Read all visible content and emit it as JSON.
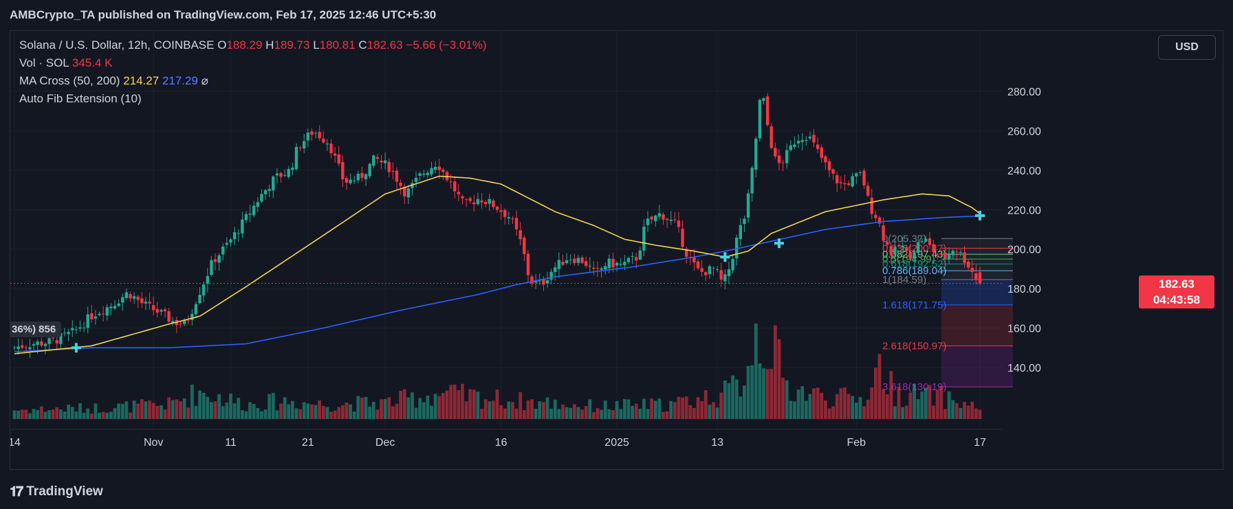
{
  "header": {
    "publisher": "AMBCrypto_TA published on TradingView.com, Feb 17, 2025 12:46 UTC+5:30"
  },
  "legend": {
    "symbol": "Solana / U.S. Dollar, 12h, COINBASE",
    "open_label": "O",
    "open": "188.29",
    "high_label": "H",
    "high": "189.73",
    "low_label": "L",
    "low": "180.81",
    "close_label": "C",
    "close": "182.63",
    "change": "−5.66 (−3.01%)",
    "vol_label": "Vol · SOL",
    "vol_value": "345.4 K",
    "ma_label": "MA Cross (50, 200)",
    "ma_fast": "214.27",
    "ma_slow": "217.29",
    "ma_symbol": "⌀",
    "fib_label": "Auto Fib Extension (10)"
  },
  "currency": "USD",
  "price_tag": {
    "price": "182.63",
    "countdown": "04:43:58"
  },
  "left_tag": "36%) 856",
  "footer": {
    "brand": "TradingView"
  },
  "colors": {
    "up": "#22ab94",
    "down": "#f23645",
    "ma50": "#f7d74a",
    "ma200": "#2962ff",
    "cross": "#4dd0e1",
    "fib_blue": "#5b9cf6",
    "fib_red": "#f23645",
    "fib_purple": "#9c27b0"
  },
  "chart_data": {
    "type": "candlestick",
    "title": "Solana / U.S. Dollar, 12h, COINBASE",
    "y_ticks": [
      140,
      160,
      180,
      200,
      220,
      240,
      260,
      280
    ],
    "ylim": [
      130,
      300
    ],
    "x_ticks": [
      {
        "label": "14",
        "index": 0
      },
      {
        "label": "Nov",
        "index": 36
      },
      {
        "label": "11",
        "index": 56
      },
      {
        "label": "21",
        "index": 76
      },
      {
        "label": "Dec",
        "index": 96
      },
      {
        "label": "16",
        "index": 126
      },
      {
        "label": "2025",
        "index": 156
      },
      {
        "label": "13",
        "index": 182
      },
      {
        "label": "Feb",
        "index": 218
      },
      {
        "label": "17",
        "index": 250
      }
    ],
    "price_anchors": [
      [
        0,
        150
      ],
      [
        5,
        152
      ],
      [
        10,
        153
      ],
      [
        16,
        158
      ],
      [
        21,
        167
      ],
      [
        26,
        172
      ],
      [
        30,
        178
      ],
      [
        34,
        172
      ],
      [
        38,
        168
      ],
      [
        42,
        163
      ],
      [
        45,
        162
      ],
      [
        48,
        176
      ],
      [
        52,
        194
      ],
      [
        56,
        203
      ],
      [
        60,
        214
      ],
      [
        64,
        226
      ],
      [
        68,
        236
      ],
      [
        72,
        240
      ],
      [
        74,
        252
      ],
      [
        78,
        260
      ],
      [
        82,
        254
      ],
      [
        86,
        234
      ],
      [
        90,
        236
      ],
      [
        94,
        246
      ],
      [
        98,
        241
      ],
      [
        102,
        228
      ],
      [
        106,
        238
      ],
      [
        110,
        244
      ],
      [
        114,
        232
      ],
      [
        117,
        222
      ],
      [
        121,
        226
      ],
      [
        125,
        222
      ],
      [
        129,
        216
      ],
      [
        132,
        202
      ],
      [
        134,
        184
      ],
      [
        137,
        182
      ],
      [
        140,
        190
      ],
      [
        144,
        196
      ],
      [
        148,
        194
      ],
      [
        151,
        187
      ],
      [
        154,
        193
      ],
      [
        158,
        192
      ],
      [
        162,
        196
      ],
      [
        164,
        213
      ],
      [
        168,
        218
      ],
      [
        172,
        212
      ],
      [
        175,
        196
      ],
      [
        178,
        188
      ],
      [
        182,
        190
      ],
      [
        184,
        182
      ],
      [
        186,
        192
      ],
      [
        188,
        208
      ],
      [
        190,
        218
      ],
      [
        192,
        245
      ],
      [
        194,
        282
      ],
      [
        196,
        258
      ],
      [
        198,
        242
      ],
      [
        200,
        246
      ],
      [
        203,
        256
      ],
      [
        206,
        258
      ],
      [
        209,
        248
      ],
      [
        212,
        238
      ],
      [
        215,
        232
      ],
      [
        218,
        236
      ],
      [
        220,
        238
      ],
      [
        222,
        222
      ],
      [
        224,
        216
      ],
      [
        226,
        204
      ],
      [
        228,
        197
      ],
      [
        230,
        203
      ],
      [
        232,
        196
      ],
      [
        234,
        201
      ],
      [
        236,
        206
      ],
      [
        238,
        200
      ],
      [
        241,
        195
      ],
      [
        244,
        201
      ],
      [
        247,
        194
      ],
      [
        250,
        184
      ]
    ],
    "volume_anchors": [
      [
        0,
        10
      ],
      [
        20,
        12
      ],
      [
        40,
        16
      ],
      [
        48,
        30
      ],
      [
        60,
        16
      ],
      [
        70,
        20
      ],
      [
        80,
        16
      ],
      [
        96,
        18
      ],
      [
        110,
        28
      ],
      [
        130,
        20
      ],
      [
        150,
        14
      ],
      [
        170,
        16
      ],
      [
        184,
        28
      ],
      [
        188,
        40
      ],
      [
        192,
        95
      ],
      [
        196,
        82
      ],
      [
        200,
        35
      ],
      [
        210,
        24
      ],
      [
        220,
        22
      ],
      [
        224,
        58
      ],
      [
        228,
        28
      ],
      [
        240,
        24
      ],
      [
        250,
        12
      ]
    ],
    "ma50_anchors": [
      [
        0,
        147
      ],
      [
        20,
        151
      ],
      [
        40,
        162
      ],
      [
        48,
        166
      ],
      [
        60,
        181
      ],
      [
        80,
        207
      ],
      [
        96,
        228
      ],
      [
        110,
        237
      ],
      [
        118,
        236
      ],
      [
        126,
        233
      ],
      [
        140,
        219
      ],
      [
        150,
        212
      ],
      [
        158,
        205
      ],
      [
        166,
        202
      ],
      [
        176,
        199
      ],
      [
        184,
        196
      ],
      [
        190,
        199
      ],
      [
        196,
        208
      ],
      [
        210,
        219
      ],
      [
        225,
        225
      ],
      [
        235,
        228
      ],
      [
        242,
        227
      ],
      [
        248,
        221
      ],
      [
        252,
        215
      ]
    ],
    "ma200_anchors": [
      [
        0,
        148
      ],
      [
        20,
        150
      ],
      [
        40,
        150
      ],
      [
        60,
        152
      ],
      [
        80,
        160
      ],
      [
        100,
        169
      ],
      [
        120,
        177
      ],
      [
        130,
        182
      ],
      [
        140,
        186
      ],
      [
        160,
        191
      ],
      [
        176,
        196
      ],
      [
        184,
        199
      ],
      [
        196,
        204
      ],
      [
        210,
        210
      ],
      [
        225,
        214
      ],
      [
        240,
        216
      ],
      [
        252,
        217
      ]
    ],
    "crosses": [
      {
        "index": 16,
        "price": 150
      },
      {
        "index": 184,
        "price": 196
      },
      {
        "index": 198,
        "price": 203
      },
      {
        "index": 250,
        "price": 217
      }
    ],
    "fib_levels": [
      {
        "label": "0(205.37)",
        "value": 205.37,
        "color": "#787b86"
      },
      {
        "label": "0.236(200.47)",
        "value": 200.47,
        "color": "#f23645"
      },
      {
        "label": "0.382(197.43)",
        "value": 197.43,
        "color": "#81c784"
      },
      {
        "label": "0.5(194.99)",
        "value": 194.99,
        "color": "#4caf50"
      },
      {
        "label": "0.618(192.52)",
        "value": 192.52,
        "color": "#089981"
      },
      {
        "label": "0.786(189.04)",
        "value": 189.04,
        "color": "#64b5f6"
      },
      {
        "label": "1(184.59)",
        "value": 184.59,
        "color": "#787b86"
      },
      {
        "label": "1.618(171.75)",
        "value": 171.75,
        "color": "#2962ff"
      },
      {
        "label": "2.618(150.97)",
        "value": 150.97,
        "color": "#f23645"
      },
      {
        "label": "3.618(130.19)",
        "value": 130.19,
        "color": "#9c27b0"
      }
    ],
    "fib_label_index": 224,
    "fib_start_index": 240,
    "current_price": 182.63
  }
}
